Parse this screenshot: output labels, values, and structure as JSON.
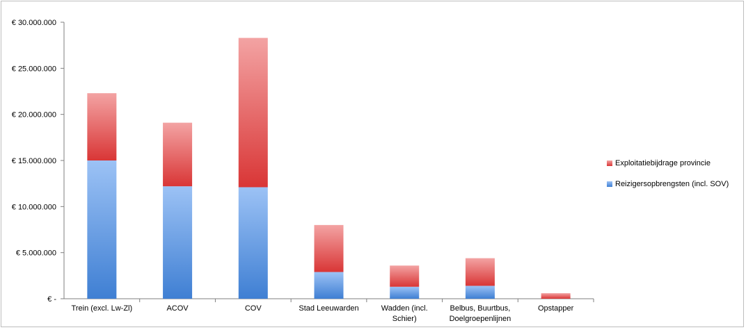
{
  "chart_data": {
    "type": "bar",
    "stacked": true,
    "categories": [
      [
        "Trein (excl. Lw-Zl)"
      ],
      [
        "ACOV"
      ],
      [
        "COV"
      ],
      [
        "Stad Leeuwarden"
      ],
      [
        "Wadden (incl.",
        "Schier)"
      ],
      [
        "Belbus, Buurtbus,",
        "Doelgroepenlijnen"
      ],
      [
        "Opstapper"
      ]
    ],
    "series": [
      {
        "name": "Reizigersopbrengsten (incl. SOV)",
        "color": "#5b97e1",
        "values": [
          15000000,
          12200000,
          12100000,
          2900000,
          1300000,
          1400000,
          0
        ]
      },
      {
        "name": "Exploitatiebijdrage provincie",
        "color": "#e05c5c",
        "values": [
          7300000,
          6900000,
          16200000,
          5100000,
          2300000,
          3000000,
          600000
        ]
      }
    ],
    "y_ticks": [
      "€ -",
      "€ 5.000.000",
      "€ 10.000.000",
      "€ 15.000.000",
      "€ 20.000.000",
      "€ 25.000.000",
      "€ 30.000.000"
    ],
    "ylim": [
      0,
      30000000
    ],
    "legend_position": "right",
    "grid": false
  }
}
